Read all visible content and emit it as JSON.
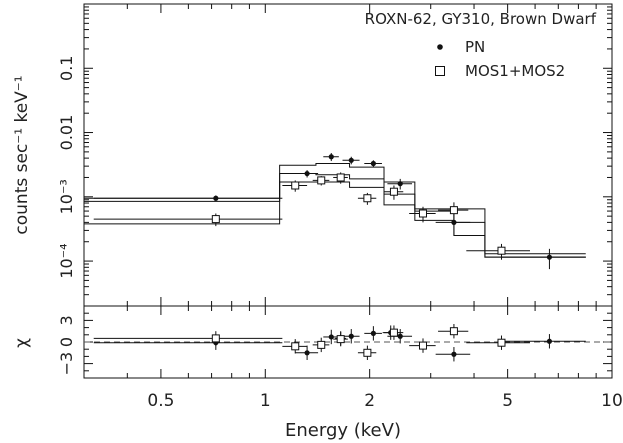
{
  "chart_data": [
    {
      "type": "scatter",
      "title": "ROXN-62, GY310, Brown Dwarf",
      "xlabel": "Energy (keV)",
      "ylabel": "counts sec⁻¹ keV⁻¹",
      "xscale": "log",
      "yscale": "log",
      "xlim": [
        0.3,
        10
      ],
      "ylim": [
        2e-05,
        1.0
      ],
      "x_ticks": [
        0.5,
        1,
        2,
        5,
        10
      ],
      "x_tick_labels": [
        "0.5",
        "1",
        "2",
        "5",
        "10"
      ],
      "y_ticks": [
        0.0001,
        0.001,
        0.01,
        0.1
      ],
      "y_tick_labels": [
        "10⁻⁴",
        "10⁻³",
        "0.01",
        "0.1"
      ],
      "legend_position": "top-right",
      "series": [
        {
          "name": "PN",
          "marker": "filled-circle",
          "x": [
            0.72,
            1.32,
            1.55,
            1.77,
            2.05,
            2.45,
            3.5,
            6.6
          ],
          "xerr": [
            0.4,
            0.1,
            0.08,
            0.1,
            0.12,
            0.2,
            0.4,
            1.8
          ],
          "y": [
            0.00095,
            0.0023,
            0.0042,
            0.0037,
            0.0033,
            0.0016,
            0.0004,
            0.000115
          ],
          "yerr_lo": [
            0.0001,
            0.0003,
            0.0006,
            0.0005,
            0.0004,
            0.0003,
            0.00015,
            4e-05
          ],
          "yerr_hi": [
            0.0001,
            0.0003,
            0.0006,
            0.0005,
            0.0004,
            0.0003,
            0.00015,
            4e-05
          ]
        },
        {
          "name": "MOS1+MOS2",
          "marker": "open-square",
          "x": [
            0.72,
            1.22,
            1.45,
            1.65,
            1.97,
            2.35,
            2.85,
            3.5,
            4.8
          ],
          "xerr": [
            0.4,
            0.1,
            0.08,
            0.08,
            0.12,
            0.15,
            0.25,
            0.35,
            1.0
          ],
          "y": [
            0.00045,
            0.0015,
            0.0018,
            0.002,
            0.00095,
            0.0012,
            0.00055,
            0.00062,
            0.000145
          ],
          "yerr_lo": [
            0.0001,
            0.0003,
            0.0003,
            0.0004,
            0.0002,
            0.0003,
            0.00015,
            0.0002,
            4e-05
          ],
          "yerr_hi": [
            0.0001,
            0.0003,
            0.0003,
            0.0004,
            0.0002,
            0.0003,
            0.00015,
            0.0002,
            4e-05
          ]
        }
      ],
      "models": [
        {
          "edges": [
            0.3,
            1.1,
            1.4,
            1.75,
            2.2,
            2.7,
            3.5,
            4.3,
            8.4
          ],
          "values": [
            0.00095,
            0.0031,
            0.0033,
            0.0029,
            0.0017,
            0.00065,
            0.00065,
            0.000115
          ]
        },
        {
          "edges": [
            0.3,
            1.1,
            1.4,
            1.75,
            2.2,
            2.7,
            3.5,
            4.3,
            8.4
          ],
          "values": [
            0.00085,
            0.0023,
            0.0022,
            0.0019,
            0.0011,
            0.0006,
            0.0004,
            0.000115
          ]
        },
        {
          "edges": [
            0.3,
            1.1,
            1.4,
            1.75,
            2.2,
            2.7,
            3.5,
            4.3,
            8.4
          ],
          "values": [
            0.00038,
            0.0017,
            0.0017,
            0.0014,
            0.00075,
            0.00043,
            0.00025,
            0.00013
          ]
        }
      ]
    },
    {
      "type": "scatter",
      "xlabel": "Energy (keV)",
      "ylabel": "χ",
      "xscale": "log",
      "xlim": [
        0.3,
        10
      ],
      "ylim": [
        -5,
        5
      ],
      "y_ticks": [
        -3,
        0,
        3
      ],
      "y_tick_labels": [
        "−3",
        "0",
        "3"
      ],
      "zero_line": "dashed",
      "series": [
        {
          "name": "PN",
          "marker": "filled-circle",
          "x": [
            0.72,
            1.32,
            1.55,
            1.65,
            1.77,
            2.05,
            2.3,
            2.45,
            3.5,
            6.6
          ],
          "xerr": [
            0.4,
            0.1,
            0.08,
            0.06,
            0.1,
            0.12,
            0.12,
            0.2,
            0.4,
            1.8
          ],
          "y": [
            -0.1,
            -1.5,
            0.7,
            0.5,
            0.8,
            1.2,
            1.3,
            0.8,
            -1.7,
            0.1
          ],
          "yerr": [
            1,
            1,
            1,
            1,
            1,
            1,
            1,
            1,
            1,
            1
          ]
        },
        {
          "name": "MOS1+MOS2",
          "marker": "open-square",
          "x": [
            0.72,
            1.22,
            1.45,
            1.65,
            1.97,
            2.35,
            2.85,
            3.5,
            4.8
          ],
          "xerr": [
            0.4,
            0.1,
            0.08,
            0.08,
            0.12,
            0.15,
            0.25,
            0.35,
            1.0
          ],
          "y": [
            0.5,
            -0.6,
            -0.4,
            0.4,
            -1.5,
            1.3,
            -0.5,
            1.5,
            -0.1
          ],
          "yerr": [
            1,
            1,
            1,
            1,
            1,
            1,
            1,
            1,
            1
          ]
        }
      ]
    }
  ]
}
